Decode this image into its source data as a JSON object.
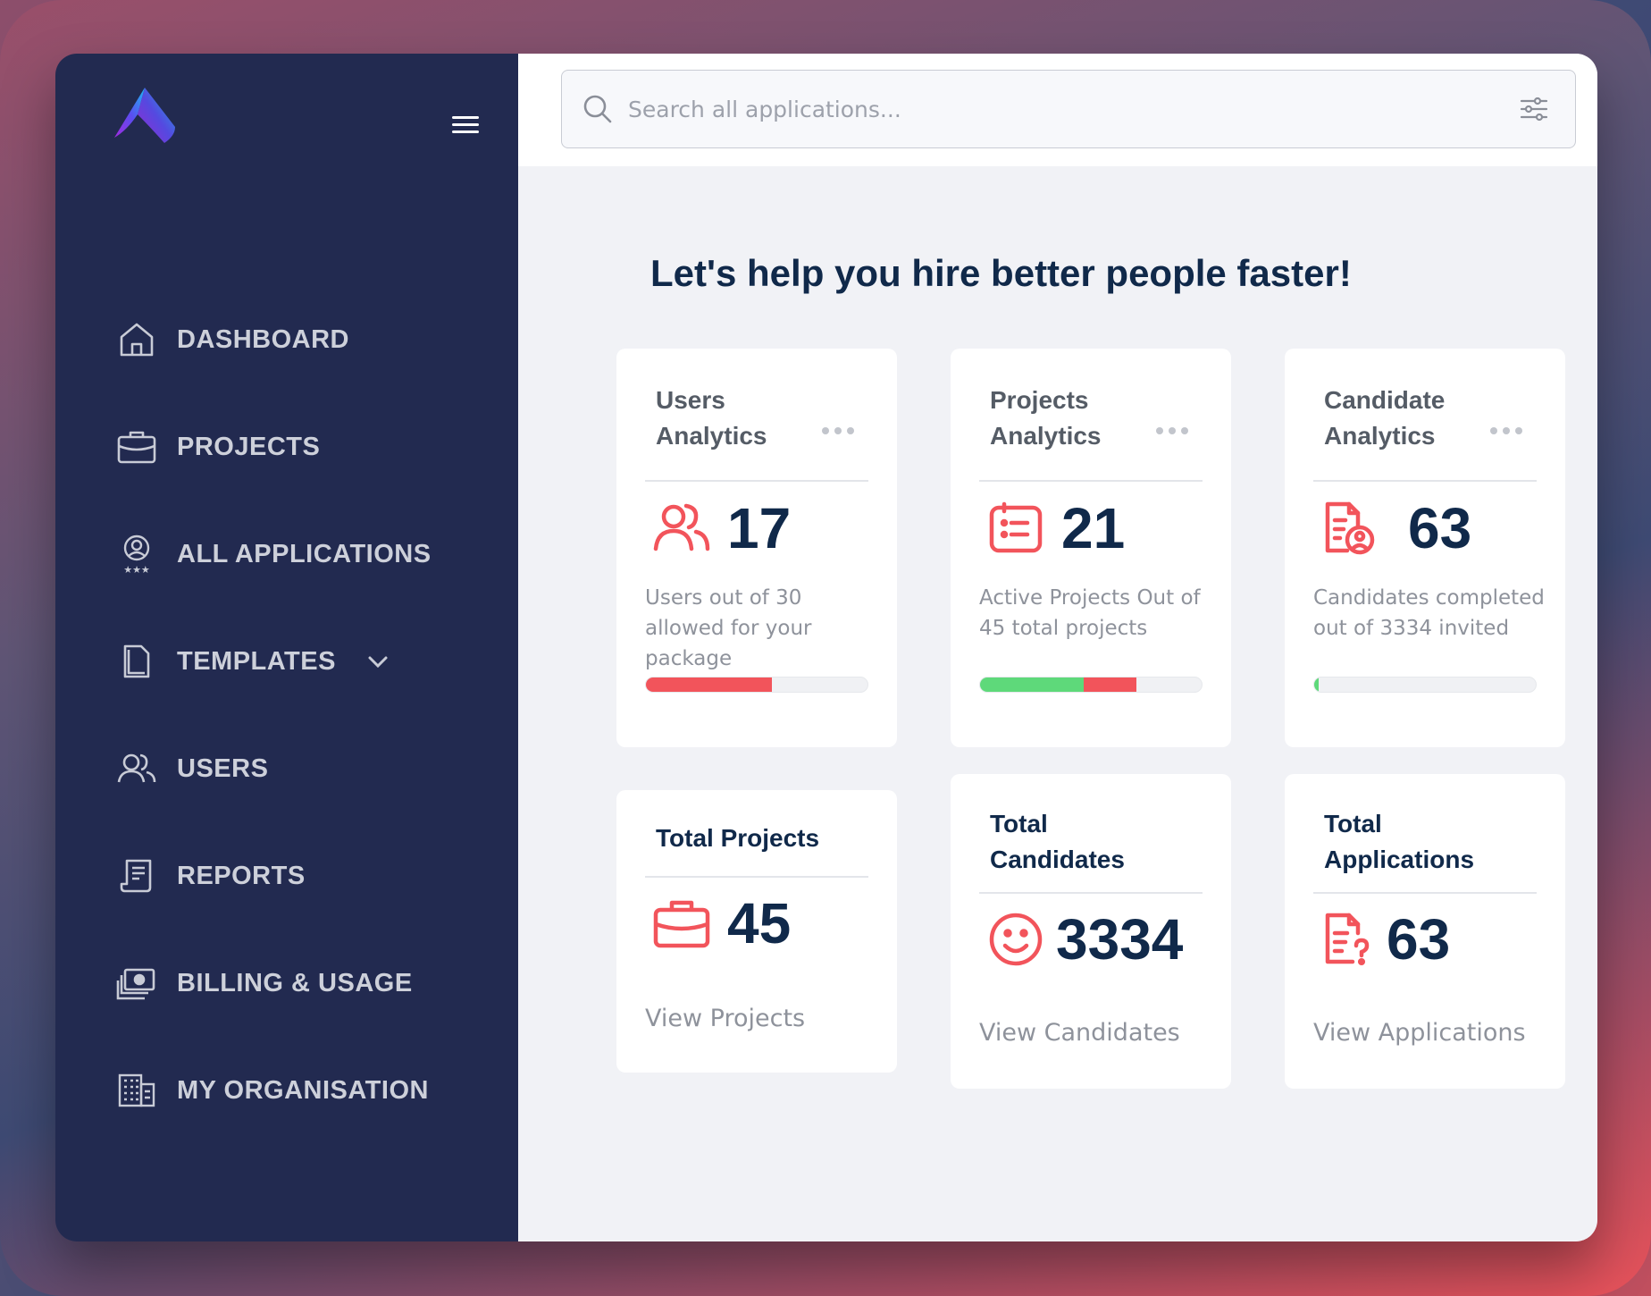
{
  "colors": {
    "sidebar_bg": "#222a50",
    "accent_red": "#f2545b",
    "accent_green": "#5ed97a",
    "heading_navy": "#10294a"
  },
  "sidebar": {
    "items": [
      {
        "label": "DASHBOARD",
        "icon": "home-icon"
      },
      {
        "label": "PROJECTS",
        "icon": "briefcase-icon"
      },
      {
        "label": "ALL APPLICATIONS",
        "icon": "user-rating-icon"
      },
      {
        "label": "TEMPLATES",
        "icon": "document-icon",
        "expandable": true
      },
      {
        "label": "USERS",
        "icon": "users-icon"
      },
      {
        "label": "REPORTS",
        "icon": "report-icon"
      },
      {
        "label": "BILLING & USAGE",
        "icon": "money-icon"
      },
      {
        "label": "MY ORGANISATION",
        "icon": "building-icon"
      }
    ]
  },
  "search": {
    "placeholder": "Search all applications..."
  },
  "headline": "Let's help you hire better people faster!",
  "analytics": [
    {
      "title_line1": "Users",
      "title_line2": "Analytics",
      "value": "17",
      "icon": "users-icon",
      "description": "Users out of 30 allowed for your package",
      "progress": [
        {
          "fraction": 0.567,
          "color": "#f2545b"
        }
      ]
    },
    {
      "title_line1": "Projects",
      "title_line2": "Analytics",
      "value": "21",
      "icon": "list-doc-icon",
      "description": "Active Projects Out of 45 total projects",
      "progress": [
        {
          "fraction": 0.467,
          "color": "#5ed97a"
        },
        {
          "fraction": 0.24,
          "color": "#f2545b"
        }
      ]
    },
    {
      "title_line1": "Candidate",
      "title_line2": "Analytics",
      "value": "63",
      "icon": "candidate-doc-icon",
      "description": "Candidates completed out of 3334 invited",
      "progress": [
        {
          "fraction": 0.019,
          "color": "#5ed97a"
        }
      ]
    }
  ],
  "totals": [
    {
      "title_line1": "Total Projects",
      "title_line2": "",
      "value": "45",
      "icon": "briefcase-icon",
      "link": "View Projects"
    },
    {
      "title_line1": "Total",
      "title_line2": "Candidates",
      "value": "3334",
      "icon": "smiley-icon",
      "link": "View Candidates"
    },
    {
      "title_line1": "Total",
      "title_line2": "Applications",
      "value": "63",
      "icon": "application-doc-icon",
      "link": "View Applications"
    }
  ]
}
